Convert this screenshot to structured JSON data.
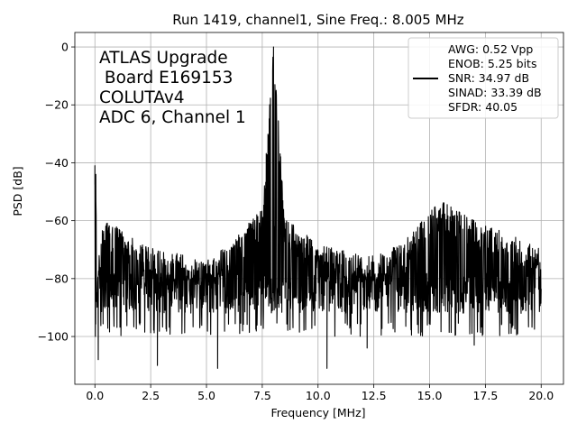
{
  "chart_data": {
    "type": "line",
    "title": "Run 1419, channel1, Sine Freq.: 8.005 MHz",
    "xlabel": "Frequency [MHz]",
    "ylabel": "PSD [dB]",
    "xlim": [
      -0.9,
      21.0
    ],
    "ylim": [
      -116.5,
      5
    ],
    "x_ticks": [
      0.0,
      2.5,
      5.0,
      7.5,
      10.0,
      12.5,
      15.0,
      17.5,
      20.0
    ],
    "x_tick_labels": [
      "0.0",
      "2.5",
      "5.0",
      "7.5",
      "10.0",
      "12.5",
      "15.0",
      "17.5",
      "20.0"
    ],
    "y_ticks": [
      0,
      -20,
      -40,
      -60,
      -80,
      -100
    ],
    "y_tick_labels": [
      "0",
      "−20",
      "−40",
      "−60",
      "−80",
      "−100"
    ],
    "grid": true,
    "legend_position": "top-right",
    "line_color": "#000000",
    "annotation_lines": [
      "ATLAS Upgrade",
      " Board E169153",
      "COLUTAv4",
      "ADC 6, Channel 1"
    ],
    "legend_lines": [
      "AWG: 0.52 Vpp",
      "ENOB: 5.25 bits",
      "SNR: 34.97 dB",
      "SINAD: 33.39 dB",
      "SFDR: 40.05"
    ],
    "series": [
      {
        "x_range": [
          0.0,
          20.0
        ],
        "description_points": [
          [
            0.0,
            -41
          ],
          [
            0.05,
            -45
          ],
          [
            0.1,
            -80
          ],
          [
            0.3,
            -60
          ],
          [
            1.0,
            -62
          ],
          [
            2.0,
            -68
          ],
          [
            3.0,
            -70
          ],
          [
            4.0,
            -72
          ],
          [
            5.0,
            -73
          ],
          [
            6.0,
            -68
          ],
          [
            7.0,
            -60
          ],
          [
            7.5,
            -56
          ],
          [
            8.005,
            0
          ],
          [
            8.5,
            -58
          ],
          [
            9.0,
            -62
          ],
          [
            10.0,
            -68
          ],
          [
            11.0,
            -70
          ],
          [
            12.0,
            -72
          ],
          [
            13.0,
            -71
          ],
          [
            14.0,
            -66
          ],
          [
            15.0,
            -57
          ],
          [
            15.5,
            -53
          ],
          [
            16.0,
            -55
          ],
          [
            17.0,
            -60
          ],
          [
            18.0,
            -63
          ],
          [
            19.0,
            -66
          ],
          [
            20.0,
            -70
          ]
        ],
        "baseline_db": -82,
        "spur_lows": [
          [
            0.15,
            -108
          ],
          [
            2.8,
            -110
          ],
          [
            5.5,
            -111
          ],
          [
            10.4,
            -111
          ],
          [
            12.2,
            -104
          ],
          [
            17.0,
            -103
          ]
        ]
      }
    ]
  }
}
